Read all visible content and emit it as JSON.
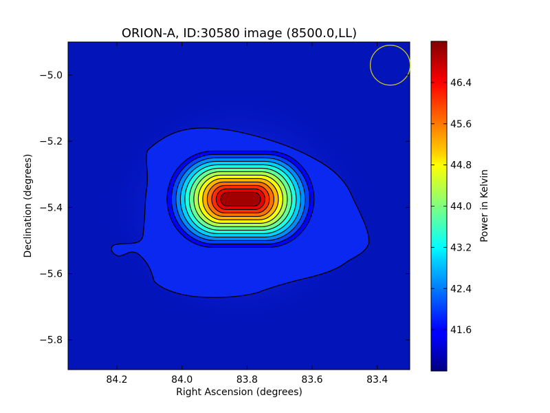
{
  "chart_data": {
    "type": "heatmap",
    "title": "ORION-A, ID:30580 image (8500.0,LL)",
    "xlabel": "Right Ascension (degrees)",
    "ylabel": "Declination (degrees)",
    "x_inverted": true,
    "xlim": [
      84.35,
      83.3
    ],
    "ylim": [
      -5.89,
      -4.9
    ],
    "x_ticks": [
      84.2,
      84.0,
      83.8,
      83.6,
      83.4
    ],
    "x_tick_labels": [
      "84.2",
      "84.0",
      "83.8",
      "83.6",
      "83.4"
    ],
    "y_ticks": [
      -5.0,
      -5.2,
      -5.4,
      -5.6,
      -5.8
    ],
    "y_tick_labels": [
      "−5.0",
      "−5.2",
      "−5.4",
      "−5.6",
      "−5.8"
    ],
    "colorbar": {
      "label": "Power in Kelvin",
      "colormap": "jet",
      "range": [
        40.8,
        47.2
      ],
      "ticks": [
        41.6,
        42.4,
        43.2,
        44.0,
        44.8,
        45.6,
        46.4
      ],
      "tick_labels": [
        "41.6",
        "42.4",
        "43.2",
        "44.0",
        "44.8",
        "45.6",
        "46.4"
      ]
    },
    "source": {
      "peak_ra": 83.82,
      "peak_dec": -5.375,
      "peak_value": 47.0,
      "background_value": 41.0
    },
    "contours": {
      "count": 13,
      "color": "#000000"
    },
    "beam_circle": {
      "ra": 83.36,
      "dec": -4.97,
      "color": "#c8c820"
    }
  }
}
